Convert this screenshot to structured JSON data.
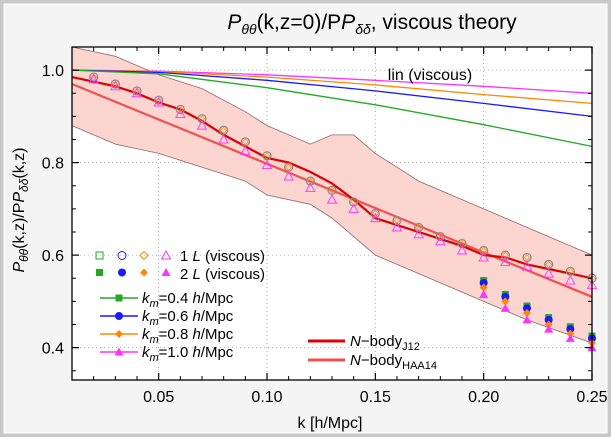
{
  "chart_data": {
    "type": "line",
    "title_main": "P",
    "title_sub1": "θθ",
    "title_mid": "(k,z=0)/P",
    "title_sub2": "δδ",
    "title_tail": ", viscous theory",
    "xlabel": "k [h/Mpc]",
    "ylabel_main1": "P",
    "ylabel_sub1": "θθ",
    "ylabel_mid": "(k,z)/P",
    "ylabel_sub2": "δδ",
    "ylabel_tail": "(k,z)",
    "xlim": [
      0.01,
      0.25
    ],
    "ylim": [
      0.33,
      1.05
    ],
    "x_ticks": [
      0.05,
      0.1,
      0.15,
      0.2,
      0.25
    ],
    "x_tick_labels": [
      "0.05",
      "0.10",
      "0.15",
      "0.20",
      "0.25"
    ],
    "y_ticks": [
      0.4,
      0.6,
      0.8,
      1.0
    ],
    "y_tick_labels": [
      "0.4",
      "0.6",
      "0.8",
      "1.0"
    ],
    "grid": "dotted",
    "background": "#ffffff",
    "frame_color": "#000000",
    "band_color": "#fcd4d0",
    "band_edge_color": "#8a6a68",
    "annotation": "lin (viscous)",
    "lin_curves": [
      {
        "color": "#ff33ff",
        "x": [
          0.01,
          0.05,
          0.1,
          0.15,
          0.2,
          0.25
        ],
        "y": [
          1.0,
          0.998,
          0.99,
          0.978,
          0.965,
          0.95
        ]
      },
      {
        "color": "#ff8800",
        "x": [
          0.01,
          0.05,
          0.1,
          0.15,
          0.2,
          0.25
        ],
        "y": [
          1.0,
          0.997,
          0.985,
          0.968,
          0.947,
          0.928
        ]
      },
      {
        "color": "#1a1aff",
        "x": [
          0.01,
          0.05,
          0.1,
          0.15,
          0.2,
          0.25
        ],
        "y": [
          1.0,
          0.995,
          0.978,
          0.955,
          0.928,
          0.9
        ]
      },
      {
        "color": "#22aa22",
        "x": [
          0.01,
          0.05,
          0.1,
          0.15,
          0.2,
          0.25
        ],
        "y": [
          1.0,
          0.992,
          0.962,
          0.925,
          0.882,
          0.835
        ]
      }
    ],
    "band": {
      "x": [
        0.01,
        0.03,
        0.05,
        0.07,
        0.09,
        0.1,
        0.12,
        0.13,
        0.14,
        0.15,
        0.17,
        0.2,
        0.22,
        0.25
      ],
      "upper": [
        1.05,
        1.03,
        0.99,
        0.96,
        0.91,
        0.88,
        0.84,
        0.86,
        0.86,
        0.82,
        0.76,
        0.7,
        0.66,
        0.6
      ],
      "lower": [
        0.88,
        0.84,
        0.82,
        0.79,
        0.76,
        0.73,
        0.71,
        0.68,
        0.64,
        0.6,
        0.56,
        0.5,
        0.46,
        0.41
      ]
    },
    "nbody_j12": {
      "color": "#dd0000",
      "x": [
        0.01,
        0.02,
        0.03,
        0.04,
        0.05,
        0.06,
        0.07,
        0.08,
        0.09,
        0.1,
        0.11,
        0.12,
        0.13,
        0.14,
        0.15,
        0.16,
        0.17,
        0.18,
        0.19,
        0.2,
        0.21,
        0.22,
        0.23,
        0.24,
        0.25
      ],
      "y": [
        0.985,
        0.975,
        0.965,
        0.95,
        0.93,
        0.915,
        0.89,
        0.86,
        0.835,
        0.81,
        0.8,
        0.78,
        0.755,
        0.72,
        0.68,
        0.665,
        0.65,
        0.635,
        0.62,
        0.6,
        0.595,
        0.58,
        0.57,
        0.56,
        0.55
      ]
    },
    "nbody_haa14": {
      "color": "#f05050",
      "x": [
        0.01,
        0.25
      ],
      "y": [
        0.97,
        0.51
      ]
    },
    "series_1L_viscous": {
      "x": [
        0.02,
        0.03,
        0.04,
        0.05,
        0.06,
        0.07,
        0.08,
        0.09,
        0.1,
        0.11,
        0.12,
        0.13,
        0.14,
        0.15,
        0.16,
        0.17,
        0.18,
        0.19,
        0.2,
        0.21,
        0.22,
        0.23,
        0.24,
        0.25
      ],
      "y": [
        0.985,
        0.97,
        0.955,
        0.935,
        0.915,
        0.895,
        0.87,
        0.845,
        0.815,
        0.79,
        0.76,
        0.74,
        0.715,
        0.69,
        0.675,
        0.66,
        0.64,
        0.625,
        0.61,
        0.6,
        0.595,
        0.58,
        0.565,
        0.55
      ]
    },
    "series_2L_viscous": {
      "x": [
        0.02,
        0.03,
        0.04,
        0.05,
        0.06,
        0.07,
        0.08,
        0.09,
        0.1,
        0.11,
        0.12,
        0.13,
        0.14,
        0.15,
        0.16,
        0.17,
        0.18,
        0.19,
        0.2,
        0.21,
        0.22,
        0.23,
        0.24,
        0.25
      ],
      "y": [
        0.98,
        0.965,
        0.95,
        0.93,
        0.905,
        0.88,
        0.85,
        0.825,
        0.795,
        0.77,
        0.745,
        0.72,
        0.7,
        0.68,
        0.66,
        0.645,
        0.63,
        0.61,
        0.595,
        0.585,
        0.575,
        0.56,
        0.545,
        0.535
      ]
    },
    "km_series": [
      {
        "name_value": "0.4",
        "color": "#22aa22",
        "marker": "square",
        "x": [
          0.2,
          0.21,
          0.22,
          0.23,
          0.24,
          0.25
        ],
        "y": [
          0.545,
          0.515,
          0.49,
          0.465,
          0.445,
          0.425
        ]
      },
      {
        "name_value": "0.6",
        "color": "#1a1aff",
        "marker": "circle",
        "x": [
          0.2,
          0.21,
          0.22,
          0.23,
          0.24,
          0.25
        ],
        "y": [
          0.54,
          0.51,
          0.485,
          0.46,
          0.44,
          0.42
        ]
      },
      {
        "name_value": "0.8",
        "color": "#ff8800",
        "marker": "diamond",
        "x": [
          0.2,
          0.21,
          0.22,
          0.23,
          0.24,
          0.25
        ],
        "y": [
          0.53,
          0.5,
          0.475,
          0.45,
          0.43,
          0.41
        ]
      },
      {
        "name_value": "1.0",
        "color": "#ff33ff",
        "marker": "triangle",
        "x": [
          0.2,
          0.21,
          0.22,
          0.23,
          0.24,
          0.25
        ],
        "y": [
          0.515,
          0.485,
          0.46,
          0.44,
          0.42,
          0.4
        ]
      }
    ],
    "legend": {
      "placement": "lower-left",
      "viscous_1L_value": "1",
      "viscous_1L_unit": "L",
      "viscous_1L_tail": "(viscous)",
      "viscous_2L_value": "2",
      "viscous_2L_unit": "L",
      "viscous_2L_tail": "(viscous)",
      "km_symbol": "k",
      "km_sub": "m",
      "km_unit_h": "h",
      "km_unit_tail": "/Mpc",
      "nbody_prefix": "N",
      "nbody_word": "−body",
      "nbody_j12_sub": "J12",
      "nbody_haa14_sub": "HAA14"
    }
  }
}
